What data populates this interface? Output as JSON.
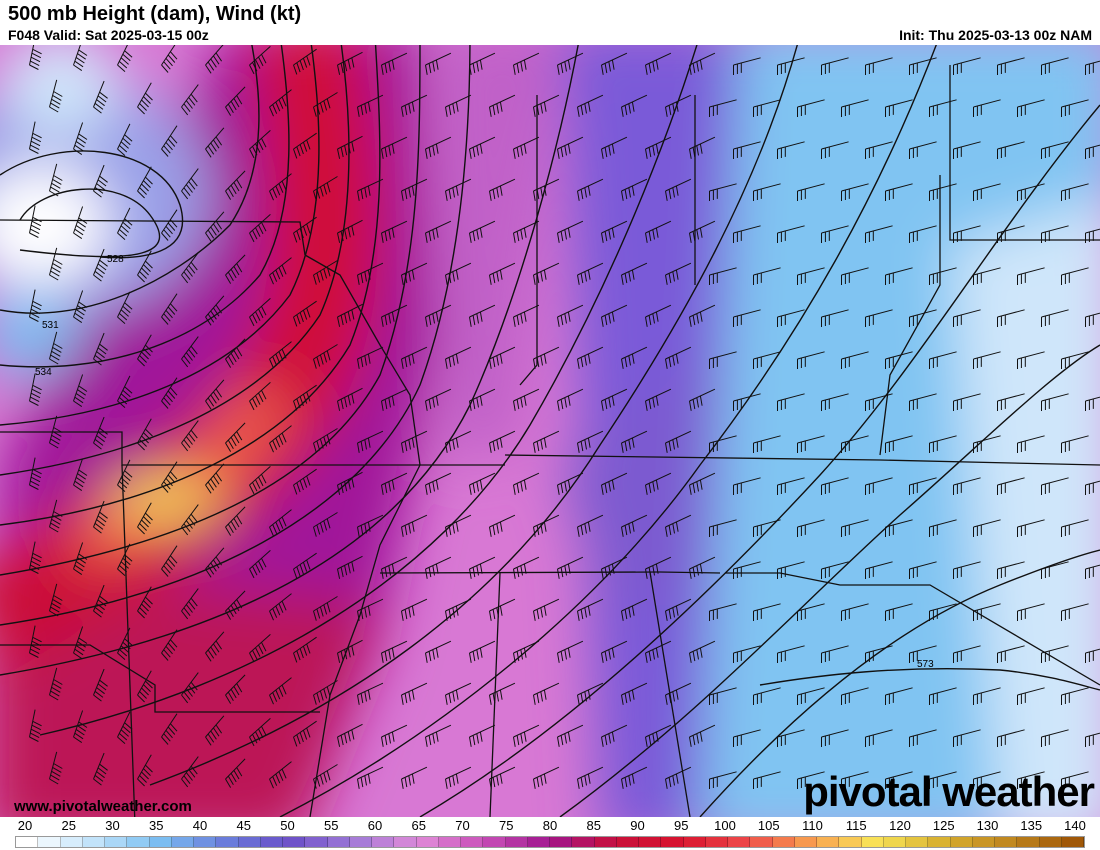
{
  "header": {
    "title": "500 mb Height (dam), Wind (kt)",
    "valid": "F048 Valid: Sat 2025-03-15 00z",
    "init": "Init: Thu 2025-03-13 00z NAM"
  },
  "map": {
    "contour_labels": [
      "528",
      "531",
      "534",
      "573"
    ],
    "website": "www.pivotalweather.com",
    "logo": "pivotal weather"
  },
  "colorbar": {
    "unit": "kt",
    "ticks": [
      "20",
      "25",
      "30",
      "35",
      "40",
      "45",
      "50",
      "55",
      "60",
      "65",
      "70",
      "75",
      "80",
      "85",
      "90",
      "95",
      "100",
      "105",
      "110",
      "115",
      "120",
      "125",
      "130",
      "135",
      "140"
    ],
    "color_stops": [
      "#ffffff",
      "#c4e4fa",
      "#7cc0f2",
      "#6a7fdc",
      "#6a4fc8",
      "#a07ad8",
      "#e08ad8",
      "#c850b8",
      "#a0168e",
      "#c8103a",
      "#d8142e",
      "#ee4a4a",
      "#f8a050",
      "#f8e458",
      "#d8b030",
      "#c08820",
      "#a05808"
    ]
  }
}
